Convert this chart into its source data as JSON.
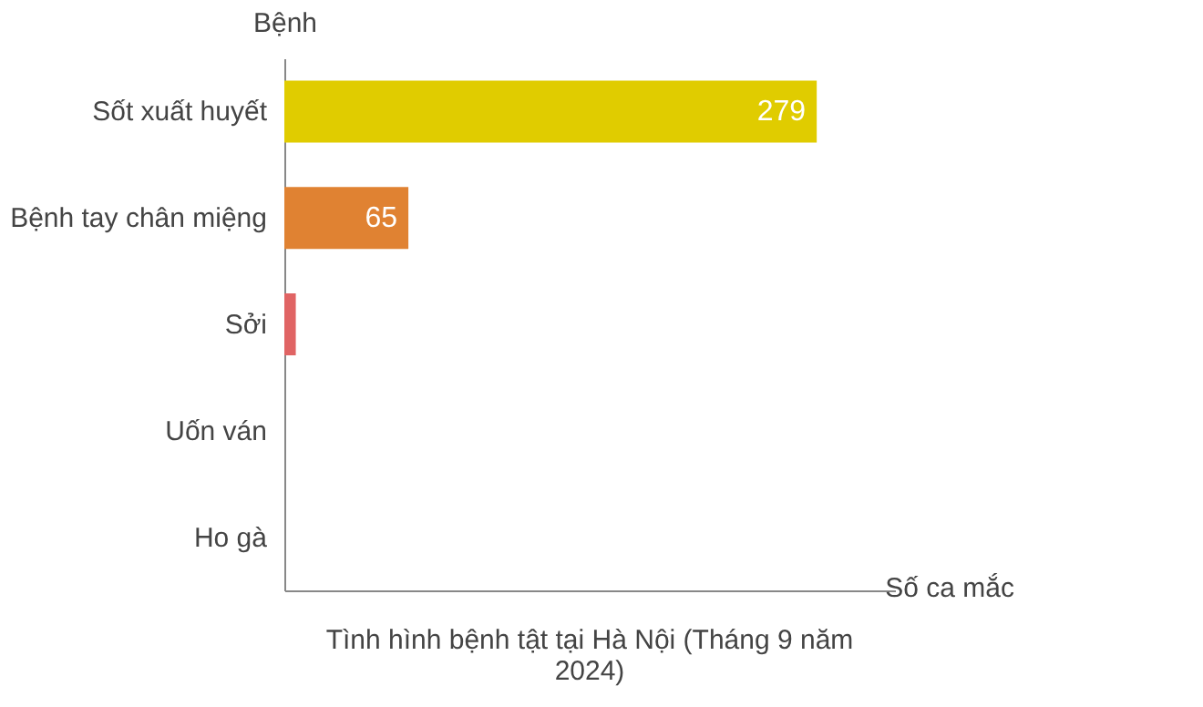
{
  "chart_data": {
    "type": "bar",
    "orientation": "horizontal",
    "title": "Tình hình bệnh tật tại Hà Nội (Tháng 9 năm 2024)",
    "xlabel": "Số ca mắc",
    "ylabel": "Bệnh",
    "categories": [
      "Sốt xuất huyết",
      "Bệnh tay chân miệng",
      "Sởi",
      "Uốn ván",
      "Ho gà"
    ],
    "values": [
      279,
      65,
      6,
      0,
      0
    ],
    "value_labels": [
      "279",
      "65",
      null,
      null,
      null
    ],
    "colors": [
      "#e0cc00",
      "#e08232",
      "#e06464",
      "#e06464",
      "#e06464"
    ],
    "xlim": [
      0,
      320
    ],
    "grid": false
  }
}
